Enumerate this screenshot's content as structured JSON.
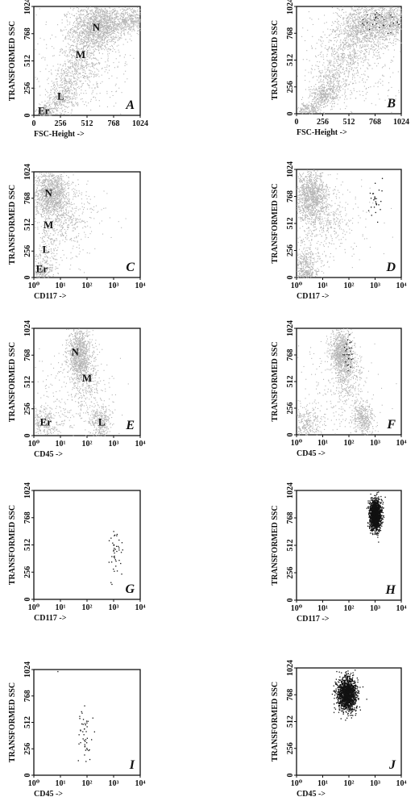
{
  "ylabel": "TRANSFORMED SSC",
  "colors": {
    "grey": "#b4b4b4",
    "black": "#111111"
  },
  "panels": [
    {
      "id": "A",
      "xlabel": "FSC-Height ->",
      "scale": "linear",
      "xticks": [
        "0",
        "256",
        "512",
        "768",
        "1024"
      ],
      "yticks": [
        "0",
        "256",
        "512",
        "768",
        "1024"
      ],
      "pops": [
        {
          "text": "N",
          "x": 600,
          "y": 820
        },
        {
          "text": "M",
          "x": 450,
          "y": 560
        },
        {
          "text": "L",
          "x": 260,
          "y": 170
        },
        {
          "text": "Er",
          "x": 95,
          "y": 35
        }
      ],
      "grey": [
        {
          "x": 600,
          "y": 830,
          "sx": 120,
          "sy": 110,
          "n": 1100
        },
        {
          "x": 780,
          "y": 880,
          "sx": 150,
          "sy": 70,
          "n": 500
        },
        {
          "x": 960,
          "y": 920,
          "sx": 60,
          "sy": 50,
          "n": 200
        },
        {
          "x": 460,
          "y": 540,
          "sx": 100,
          "sy": 140,
          "n": 420
        },
        {
          "x": 320,
          "y": 300,
          "sx": 90,
          "sy": 110,
          "n": 250
        },
        {
          "x": 250,
          "y": 150,
          "sx": 70,
          "sy": 55,
          "n": 220
        },
        {
          "x": 110,
          "y": 40,
          "sx": 45,
          "sy": 30,
          "n": 180
        },
        {
          "x": 450,
          "y": 480,
          "sx": 280,
          "sy": 330,
          "n": 350
        }
      ],
      "black": []
    },
    {
      "id": "B",
      "xlabel": "FSC-Height ->",
      "scale": "linear",
      "xticks": [
        "0",
        "256",
        "512",
        "768",
        "1024"
      ],
      "yticks": [
        "0",
        "256",
        "512",
        "768",
        "1024"
      ],
      "pops": [],
      "grey": [
        {
          "x": 700,
          "y": 840,
          "sx": 140,
          "sy": 110,
          "n": 1200
        },
        {
          "x": 930,
          "y": 900,
          "sx": 80,
          "sy": 80,
          "n": 420
        },
        {
          "x": 500,
          "y": 580,
          "sx": 110,
          "sy": 150,
          "n": 380
        },
        {
          "x": 330,
          "y": 320,
          "sx": 90,
          "sy": 100,
          "n": 300
        },
        {
          "x": 260,
          "y": 170,
          "sx": 70,
          "sy": 55,
          "n": 280
        },
        {
          "x": 120,
          "y": 50,
          "sx": 50,
          "sy": 35,
          "n": 160
        },
        {
          "x": 550,
          "y": 500,
          "sx": 290,
          "sy": 320,
          "n": 320
        }
      ],
      "black": [
        {
          "x": 780,
          "y": 880,
          "sx": 140,
          "sy": 60,
          "n": 32
        }
      ]
    },
    {
      "id": "C",
      "xlabel": "CD117 ->",
      "scale": "log",
      "xticks": [
        "10⁰",
        "10¹",
        "10²",
        "10³",
        "10⁴"
      ],
      "yticks": [
        "0",
        "256",
        "512",
        "768",
        "1024"
      ],
      "pops": [
        {
          "text": "N",
          "x": 0.55,
          "y": 810
        },
        {
          "text": "M",
          "x": 0.55,
          "y": 500
        },
        {
          "text": "L",
          "x": 0.45,
          "y": 260
        },
        {
          "text": "Er",
          "x": 0.3,
          "y": 75
        }
      ],
      "grey": [
        {
          "x": 0.65,
          "y": 830,
          "sx": 0.32,
          "sy": 110,
          "n": 1000
        },
        {
          "x": 0.9,
          "y": 620,
          "sx": 0.45,
          "sy": 150,
          "n": 300
        },
        {
          "x": 1.3,
          "y": 560,
          "sx": 0.7,
          "sy": 200,
          "n": 280
        },
        {
          "x": 0.4,
          "y": 200,
          "sx": 0.25,
          "sy": 130,
          "n": 160
        },
        {
          "x": 0.3,
          "y": 60,
          "sx": 0.2,
          "sy": 40,
          "n": 160
        }
      ],
      "black": []
    },
    {
      "id": "D",
      "xlabel": "CD117 ->",
      "scale": "log",
      "xticks": [
        "10⁰",
        "10¹",
        "10²",
        "10³",
        "10⁴"
      ],
      "yticks": [
        "0",
        "256",
        "512",
        "768",
        "1024"
      ],
      "pops": [],
      "grey": [
        {
          "x": 0.55,
          "y": 780,
          "sx": 0.3,
          "sy": 110,
          "n": 950
        },
        {
          "x": 0.9,
          "y": 580,
          "sx": 0.45,
          "sy": 150,
          "n": 280
        },
        {
          "x": 1.4,
          "y": 520,
          "sx": 0.75,
          "sy": 200,
          "n": 240
        },
        {
          "x": 0.35,
          "y": 140,
          "sx": 0.25,
          "sy": 100,
          "n": 320
        },
        {
          "x": 0.3,
          "y": 40,
          "sx": 0.2,
          "sy": 30,
          "n": 120
        }
      ],
      "black": [
        {
          "x": 3.0,
          "y": 720,
          "sx": 0.12,
          "sy": 100,
          "n": 26
        }
      ]
    },
    {
      "id": "E",
      "xlabel": "CD45 ->",
      "scale": "log",
      "xticks": [
        "10⁰",
        "10¹",
        "10²",
        "10³",
        "10⁴"
      ],
      "yticks": [
        "0",
        "256",
        "512",
        "768",
        "1024"
      ],
      "pops": [
        {
          "text": "N",
          "x": 1.55,
          "y": 790
        },
        {
          "text": "M",
          "x": 2.0,
          "y": 540
        },
        {
          "text": "L",
          "x": 2.55,
          "y": 120
        },
        {
          "text": "Er",
          "x": 0.45,
          "y": 120
        }
      ],
      "grey": [
        {
          "x": 1.7,
          "y": 780,
          "sx": 0.22,
          "sy": 120,
          "n": 850
        },
        {
          "x": 1.9,
          "y": 560,
          "sx": 0.3,
          "sy": 150,
          "n": 300
        },
        {
          "x": 2.5,
          "y": 140,
          "sx": 0.2,
          "sy": 80,
          "n": 330
        },
        {
          "x": 0.4,
          "y": 120,
          "sx": 0.3,
          "sy": 80,
          "n": 260
        },
        {
          "x": 1.3,
          "y": 330,
          "sx": 0.9,
          "sy": 250,
          "n": 260
        }
      ],
      "black": []
    },
    {
      "id": "F",
      "xlabel": "CD45 ->",
      "scale": "log",
      "xticks": [
        "10⁰",
        "10¹",
        "10²",
        "10³",
        "10⁴"
      ],
      "yticks": [
        "0",
        "256",
        "512",
        "768",
        "1024"
      ],
      "pops": [],
      "grey": [
        {
          "x": 1.7,
          "y": 780,
          "sx": 0.22,
          "sy": 120,
          "n": 850
        },
        {
          "x": 1.95,
          "y": 560,
          "sx": 0.3,
          "sy": 150,
          "n": 300
        },
        {
          "x": 2.55,
          "y": 150,
          "sx": 0.2,
          "sy": 80,
          "n": 350
        },
        {
          "x": 0.4,
          "y": 110,
          "sx": 0.3,
          "sy": 80,
          "n": 260
        },
        {
          "x": 1.3,
          "y": 330,
          "sx": 0.9,
          "sy": 250,
          "n": 250
        }
      ],
      "black": [
        {
          "x": 1.95,
          "y": 780,
          "sx": 0.12,
          "sy": 90,
          "n": 28
        }
      ]
    },
    {
      "id": "G",
      "xlabel": "CD117 ->",
      "scale": "log",
      "xticks": [
        "10⁰",
        "10¹",
        "10²",
        "10³",
        "10⁴"
      ],
      "yticks": [
        "0",
        "256",
        "512",
        "768",
        "1024"
      ],
      "pops": [],
      "grey": [],
      "black": [
        {
          "x": 3.05,
          "y": 440,
          "sx": 0.13,
          "sy": 140,
          "n": 42
        }
      ]
    },
    {
      "id": "H",
      "xlabel": "CD117 ->",
      "scale": "log",
      "xticks": [
        "10⁰",
        "10¹",
        "10²",
        "10³",
        "10⁴"
      ],
      "yticks": [
        "0",
        "256",
        "512",
        "768",
        "1024"
      ],
      "pops": [],
      "grey": [],
      "black": [
        {
          "x": 3.0,
          "y": 800,
          "sx": 0.11,
          "sy": 70,
          "n": 1400
        }
      ]
    },
    {
      "id": "I",
      "xlabel": "CD45 ->",
      "scale": "log",
      "xticks": [
        "10⁰",
        "10¹",
        "10²",
        "10³",
        "10⁴"
      ],
      "yticks": [
        "0",
        "256",
        "512",
        "768",
        "1024"
      ],
      "pops": [],
      "grey": [],
      "black": [
        {
          "x": 1.9,
          "y": 410,
          "sx": 0.13,
          "sy": 130,
          "n": 45
        },
        {
          "x": 0.9,
          "y": 1010,
          "sx": 0.03,
          "sy": 4,
          "n": 1
        }
      ]
    },
    {
      "id": "J",
      "xlabel": "CD45 ->",
      "scale": "log",
      "xticks": [
        "10⁰",
        "10¹",
        "10²",
        "10³",
        "10⁴"
      ],
      "yticks": [
        "0",
        "256",
        "512",
        "768",
        "1024"
      ],
      "pops": [],
      "grey": [],
      "black": [
        {
          "x": 1.9,
          "y": 780,
          "sx": 0.18,
          "sy": 80,
          "n": 1400
        }
      ]
    }
  ]
}
